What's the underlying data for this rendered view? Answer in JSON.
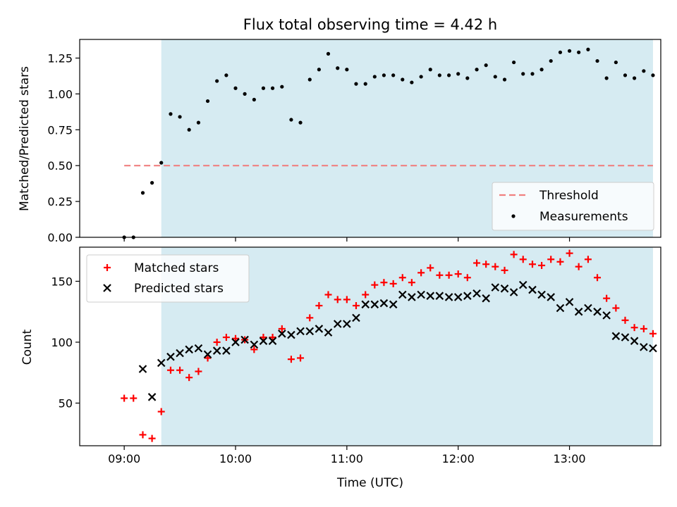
{
  "colors": {
    "shade": "#add8e6",
    "threshold": "#f08080",
    "matched": "#ff0000",
    "predicted": "#000000",
    "measurement": "#000000"
  },
  "chart_data": [
    {
      "type": "scatter",
      "title": "Flux total observing time = 4.42 h",
      "xlabel": "",
      "ylabel": "Matched/Predicted stars",
      "xlim": [
        8.6,
        13.82
      ],
      "ylim": [
        0.0,
        1.38
      ],
      "yticks": [
        0.0,
        0.25,
        0.5,
        0.75,
        1.0,
        1.25
      ],
      "ytick_labels": [
        "0.00",
        "0.25",
        "0.50",
        "0.75",
        "1.00",
        "1.25"
      ],
      "shaded_region": [
        9.333,
        13.75
      ],
      "threshold": {
        "label": "Threshold",
        "value": 0.5,
        "x_range": [
          9.0,
          13.75
        ]
      },
      "legend": {
        "position": "bottom-right",
        "entries": [
          "Threshold",
          "Measurements"
        ]
      },
      "series": [
        {
          "name": "Measurements",
          "x": [
            9.0,
            9.083,
            9.167,
            9.25,
            9.333,
            9.417,
            9.5,
            9.583,
            9.667,
            9.75,
            9.833,
            9.917,
            10.0,
            10.083,
            10.167,
            10.25,
            10.333,
            10.417,
            10.5,
            10.583,
            10.667,
            10.75,
            10.833,
            10.917,
            11.0,
            11.083,
            11.167,
            11.25,
            11.333,
            11.417,
            11.5,
            11.583,
            11.667,
            11.75,
            11.833,
            11.917,
            12.0,
            12.083,
            12.167,
            12.25,
            12.333,
            12.417,
            12.5,
            12.583,
            12.667,
            12.75,
            12.833,
            12.917,
            13.0,
            13.083,
            13.167,
            13.25,
            13.333,
            13.417,
            13.5,
            13.583,
            13.667,
            13.75
          ],
          "y": [
            0.0,
            0.0,
            0.31,
            0.38,
            0.52,
            0.86,
            0.84,
            0.75,
            0.8,
            0.95,
            1.09,
            1.13,
            1.04,
            1.0,
            0.96,
            1.04,
            1.04,
            1.05,
            0.82,
            0.8,
            1.1,
            1.17,
            1.28,
            1.18,
            1.17,
            1.07,
            1.07,
            1.12,
            1.13,
            1.13,
            1.1,
            1.08,
            1.12,
            1.17,
            1.13,
            1.13,
            1.14,
            1.11,
            1.17,
            1.2,
            1.12,
            1.1,
            1.22,
            1.14,
            1.14,
            1.17,
            1.23,
            1.29,
            1.3,
            1.29,
            1.31,
            1.23,
            1.11,
            1.22,
            1.13,
            1.11,
            1.16,
            1.13
          ]
        }
      ]
    },
    {
      "type": "scatter",
      "title": "",
      "xlabel": "Time (UTC)",
      "ylabel": "Count",
      "xlim": [
        8.6,
        13.82
      ],
      "ylim": [
        15,
        178
      ],
      "yticks": [
        50,
        100,
        150
      ],
      "ytick_labels": [
        "50",
        "100",
        "150"
      ],
      "xticks": [
        9,
        10,
        11,
        12,
        13
      ],
      "xtick_labels": [
        "09:00",
        "10:00",
        "11:00",
        "12:00",
        "13:00"
      ],
      "shaded_region": [
        9.333,
        13.75
      ],
      "legend": {
        "position": "top-left",
        "entries": [
          "Matched stars",
          "Predicted stars"
        ]
      },
      "series": [
        {
          "name": "Matched stars",
          "marker": "plus",
          "x": [
            9.0,
            9.083,
            9.167,
            9.25,
            9.333,
            9.417,
            9.5,
            9.583,
            9.667,
            9.75,
            9.833,
            9.917,
            10.0,
            10.083,
            10.167,
            10.25,
            10.333,
            10.417,
            10.5,
            10.583,
            10.667,
            10.75,
            10.833,
            10.917,
            11.0,
            11.083,
            11.167,
            11.25,
            11.333,
            11.417,
            11.5,
            11.583,
            11.667,
            11.75,
            11.833,
            11.917,
            12.0,
            12.083,
            12.167,
            12.25,
            12.333,
            12.417,
            12.5,
            12.583,
            12.667,
            12.75,
            12.833,
            12.917,
            13.0,
            13.083,
            13.167,
            13.25,
            13.333,
            13.417,
            13.5,
            13.583,
            13.667,
            13.75
          ],
          "values": [
            54,
            54,
            24,
            21,
            43,
            77,
            77,
            71,
            76,
            87,
            100,
            104,
            103,
            102,
            94,
            104,
            104,
            111,
            86,
            87,
            120,
            130,
            139,
            135,
            135,
            130,
            139,
            147,
            149,
            148,
            153,
            149,
            157,
            161,
            155,
            155,
            156,
            153,
            165,
            164,
            162,
            159,
            172,
            168,
            164,
            163,
            168,
            166,
            173,
            162,
            168,
            153,
            136,
            128,
            118,
            112,
            111,
            107
          ]
        },
        {
          "name": "Predicted stars",
          "marker": "x",
          "x": [
            9.167,
            9.25,
            9.333,
            9.417,
            9.5,
            9.583,
            9.667,
            9.75,
            9.833,
            9.917,
            10.0,
            10.083,
            10.167,
            10.25,
            10.333,
            10.417,
            10.5,
            10.583,
            10.667,
            10.75,
            10.833,
            10.917,
            11.0,
            11.083,
            11.167,
            11.25,
            11.333,
            11.417,
            11.5,
            11.583,
            11.667,
            11.75,
            11.833,
            11.917,
            12.0,
            12.083,
            12.167,
            12.25,
            12.333,
            12.417,
            12.5,
            12.583,
            12.667,
            12.75,
            12.833,
            12.917,
            13.0,
            13.083,
            13.167,
            13.25,
            13.333,
            13.417,
            13.5,
            13.583,
            13.667,
            13.75
          ],
          "values": [
            78,
            55,
            83,
            88,
            91,
            94,
            95,
            90,
            93,
            93,
            100,
            102,
            98,
            101,
            101,
            107,
            106,
            109,
            109,
            111,
            108,
            115,
            115,
            120,
            131,
            131,
            132,
            131,
            139,
            137,
            139,
            138,
            138,
            137,
            137,
            138,
            140,
            136,
            145,
            144,
            141,
            147,
            143,
            139,
            137,
            128,
            133,
            125,
            128,
            125,
            122,
            105,
            104,
            101,
            96,
            95
          ]
        }
      ]
    }
  ]
}
